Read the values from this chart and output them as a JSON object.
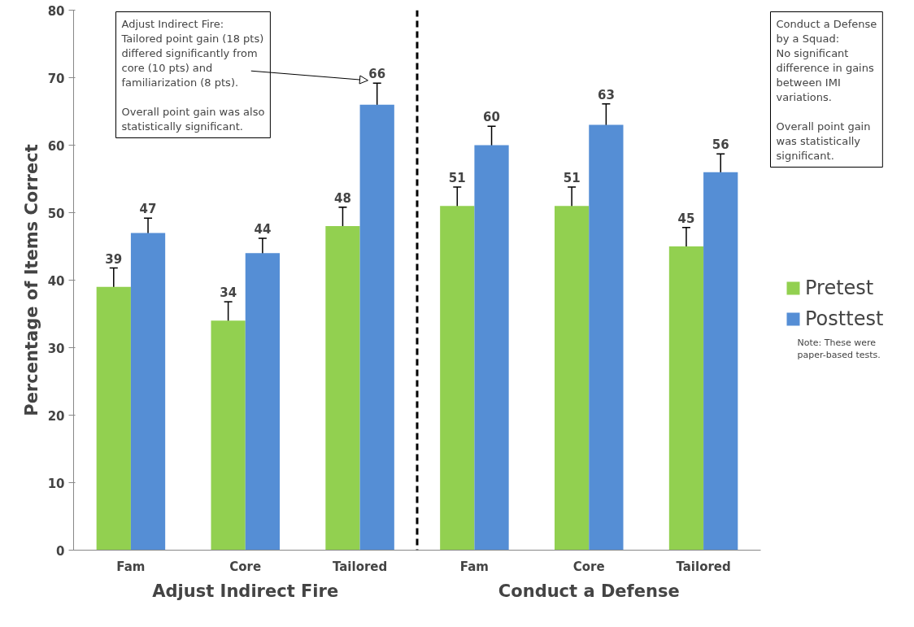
{
  "chart_data": {
    "type": "bar",
    "ylabel": "Percentage of Items Correct",
    "categories": [
      "Fam",
      "Core",
      "Tailored",
      "Fam",
      "Core",
      "Tailored"
    ],
    "series": [
      {
        "name": "Pretest",
        "color": "#92d050",
        "values": [
          39,
          34,
          48,
          51,
          51,
          45
        ],
        "errors": [
          2.8,
          2.8,
          2.8,
          2.8,
          2.8,
          2.8
        ]
      },
      {
        "name": "Posttest",
        "color": "#558ed5",
        "values": [
          47,
          44,
          66,
          60,
          63,
          56
        ],
        "errors": [
          2.2,
          2.2,
          3.2,
          2.8,
          3.1,
          2.7
        ]
      }
    ],
    "ylim": [
      0,
      80
    ],
    "yticks": [
      0,
      10,
      20,
      30,
      40,
      50,
      60,
      70,
      80
    ],
    "grid": false,
    "legend": "right",
    "data_labels": true,
    "annotations": [
      "Adjust Indirect Fire",
      "Conduct a Defense",
      "Adjust Indirect Fire:\nTailored point gain (18 pts)\ndiffered significantly from\ncore (10 pts) and\nfamiliarization (8 pts).\n\nOverall point gain was also\nstatistically significant.",
      "Conduct a Defense\nby a Squad:\nNo significant\ndifference in gains\nbetween IMI\nvariations.\n\nOverall point gain\nwas statistically\nsignificant.",
      "Note: These were\npaper-based tests."
    ]
  }
}
